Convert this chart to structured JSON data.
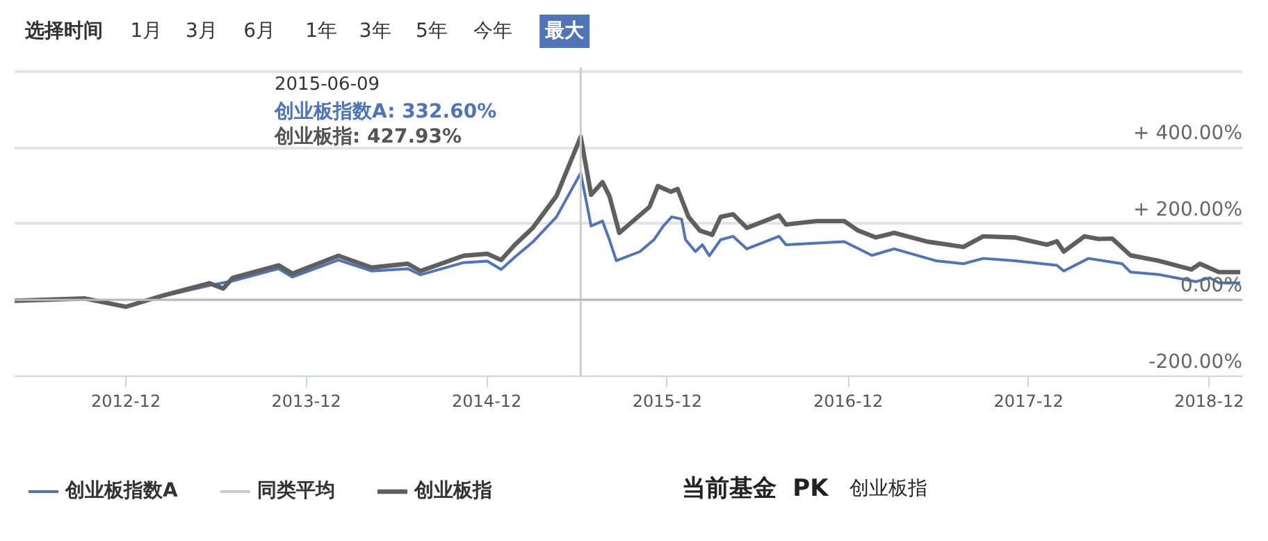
{
  "chart_data": {
    "type": "line",
    "xlim": [
      "2012-04-20",
      "2019-02-06"
    ],
    "xticks": [
      "2012-12",
      "2013-12",
      "2014-12",
      "2015-12",
      "2016-12",
      "2017-12",
      "2018-12"
    ],
    "ylim": [
      -200,
      610
    ],
    "yticks": [
      {
        "value": -200,
        "label": "-200.00%"
      },
      {
        "value": 0,
        "label": "0.00%"
      },
      {
        "value": 200,
        "label": "+ 200.00%"
      },
      {
        "value": 400,
        "label": "+ 400.00%"
      },
      {
        "value": 600,
        "label": null
      }
    ],
    "grid": "y",
    "legend": "bottom left",
    "marker": "none",
    "series": [
      {
        "name": "创业板指数A",
        "color": "#4f74b8",
        "x": [
          "2012-12-01",
          "2013-02-15",
          "2013-05-19",
          "2013-07-05",
          "2013-10-06",
          "2013-11-03",
          "2014-02-04",
          "2014-04-12",
          "2014-06-24",
          "2014-07-20",
          "2014-10-15",
          "2014-12-02",
          "2014-12-30",
          "2015-01-27",
          "2015-03-04",
          "2015-04-21",
          "2015-06-09",
          "2015-06-30",
          "2015-07-23",
          "2015-08-06",
          "2015-08-20",
          "2015-10-07",
          "2015-11-04",
          "2015-11-23",
          "2015-12-10",
          "2015-12-30",
          "2016-01-07",
          "2016-01-27",
          "2016-02-10",
          "2016-02-24",
          "2016-03-18",
          "2016-04-12",
          "2016-05-10",
          "2016-07-14",
          "2016-07-28",
          "2016-11-23",
          "2017-01-18",
          "2017-03-04",
          "2017-05-27",
          "2017-07-22",
          "2017-08-31",
          "2017-11-03",
          "2018-01-27",
          "2018-02-10",
          "2018-04-01",
          "2018-06-08",
          "2018-06-25",
          "2018-08-20",
          "2018-11-04",
          "2018-12-02",
          "2018-12-21",
          "2019-02-02"
        ],
        "values": [
          -18,
          10,
          38,
          50,
          82,
          60,
          105,
          76,
          82,
          66,
          98,
          102,
          80,
          113,
          152,
          218,
          333,
          194,
          207,
          158,
          103,
          127,
          158,
          194,
          218,
          212,
          158,
          127,
          145,
          116,
          158,
          167,
          134,
          167,
          145,
          153,
          117,
          134,
          103,
          95,
          109,
          103,
          91,
          76,
          109,
          95,
          73,
          67,
          48,
          58,
          45,
          45
        ]
      },
      {
        "name": "同类平均",
        "color": "#cccccc"
      },
      {
        "name": "创业板指",
        "color": "#5f5f5f",
        "x": [
          "2012-04-20",
          "2012-09-08",
          "2012-12-01",
          "2013-02-15",
          "2013-05-19",
          "2013-06-16",
          "2013-07-05",
          "2013-10-06",
          "2013-11-03",
          "2014-02-04",
          "2014-04-12",
          "2014-06-24",
          "2014-07-20",
          "2014-10-15",
          "2014-12-02",
          "2014-12-30",
          "2015-01-27",
          "2015-03-04",
          "2015-04-21",
          "2015-06-09",
          "2015-06-30",
          "2015-07-23",
          "2015-08-06",
          "2015-08-26",
          "2015-10-26",
          "2015-11-12",
          "2015-12-08",
          "2015-12-22",
          "2016-01-13",
          "2016-02-05",
          "2016-03-01",
          "2016-03-18",
          "2016-04-12",
          "2016-05-10",
          "2016-07-14",
          "2016-07-28",
          "2016-09-28",
          "2016-11-23",
          "2016-12-21",
          "2017-01-26",
          "2017-03-04",
          "2017-05-10",
          "2017-07-22",
          "2017-08-31",
          "2017-11-03",
          "2018-01-07",
          "2018-01-27",
          "2018-02-10",
          "2018-03-24",
          "2018-04-21",
          "2018-05-19",
          "2018-06-25",
          "2018-08-20",
          "2018-10-26",
          "2018-11-12",
          "2018-12-21",
          "2019-02-02"
        ],
        "values": [
          -2,
          4,
          -18,
          12,
          44,
          30,
          58,
          91,
          69,
          116,
          85,
          95,
          76,
          116,
          121,
          105,
          145,
          189,
          273,
          428,
          276,
          309,
          273,
          176,
          244,
          299,
          284,
          291,
          218,
          182,
          171,
          218,
          225,
          189,
          222,
          198,
          207,
          207,
          182,
          164,
          176,
          153,
          139,
          167,
          164,
          145,
          154,
          127,
          167,
          160,
          161,
          117,
          103,
          80,
          95,
          73,
          73
        ]
      }
    ],
    "ref_lines": [
      {
        "axis": "x",
        "value": "2015-06-09",
        "color": "#cccccc"
      },
      {
        "axis": "y",
        "value": 0,
        "color": "#bbbbbb"
      }
    ],
    "annotations": [
      "2015-06-09",
      "创业板指数A: 332.60%",
      "创业板指: 427.93%",
      "选择时间",
      "1月",
      "3月",
      "6月",
      "1年",
      "3年",
      "5年",
      "今年",
      "最大",
      "当前基金",
      "PK",
      "创业板指"
    ]
  }
}
